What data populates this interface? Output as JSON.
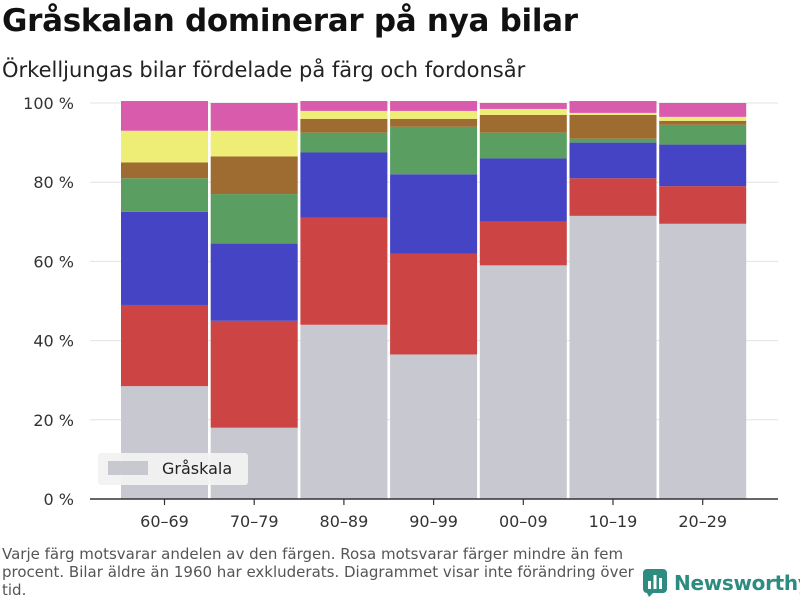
{
  "title": "Gråskalan dominerar på nya bilar",
  "subtitle": "Örkelljungas bilar fördelade på färg och fordonsår",
  "footnote": "Varje färg motsvarar andelen av den färgen. Rosa motsvarar färger mindre än fem procent. Bilar äldre än 1960 har exkluderats. Diagrammet visar inte förändring över tid.",
  "brand": {
    "name": "Newsworthy",
    "icon": "bar-chart-logo-icon",
    "color": "#2e8b7f"
  },
  "chart_data": {
    "type": "bar",
    "stacked": true,
    "categories": [
      "60–69",
      "70–79",
      "80–89",
      "90–99",
      "00–09",
      "10–19",
      "20–29"
    ],
    "y_ticks": [
      "0 %",
      "20 %",
      "40 %",
      "60 %",
      "80 %",
      "100 %"
    ],
    "ylim": [
      0,
      100
    ],
    "grid": true,
    "legend": {
      "placement": "bottom-left",
      "label": "Gråskala"
    },
    "series": [
      {
        "name": "Gråskala",
        "color": "#c8c8d0",
        "values": [
          28.5,
          18,
          44,
          36.5,
          59,
          71.5,
          69.5
        ]
      },
      {
        "color": "#cc4444",
        "values": [
          20.5,
          27,
          27,
          25.5,
          11,
          9.5,
          9.5
        ]
      },
      {
        "color": "#4444c4",
        "values": [
          23.5,
          19.5,
          16.5,
          20,
          16,
          9,
          10.5
        ]
      },
      {
        "color": "#5a9e62",
        "values": [
          8.5,
          12.5,
          5,
          12,
          6.5,
          1,
          5
        ]
      },
      {
        "color": "#9e6b30",
        "values": [
          4,
          9.5,
          3.5,
          2,
          4.5,
          6,
          1
        ]
      },
      {
        "color": "#eeee77",
        "values": [
          8,
          6.5,
          2,
          2,
          1.5,
          0.5,
          1
        ]
      },
      {
        "color": "#d95bab",
        "values": [
          7.5,
          7,
          2.5,
          2.5,
          1.5,
          3,
          3.5
        ]
      }
    ]
  }
}
